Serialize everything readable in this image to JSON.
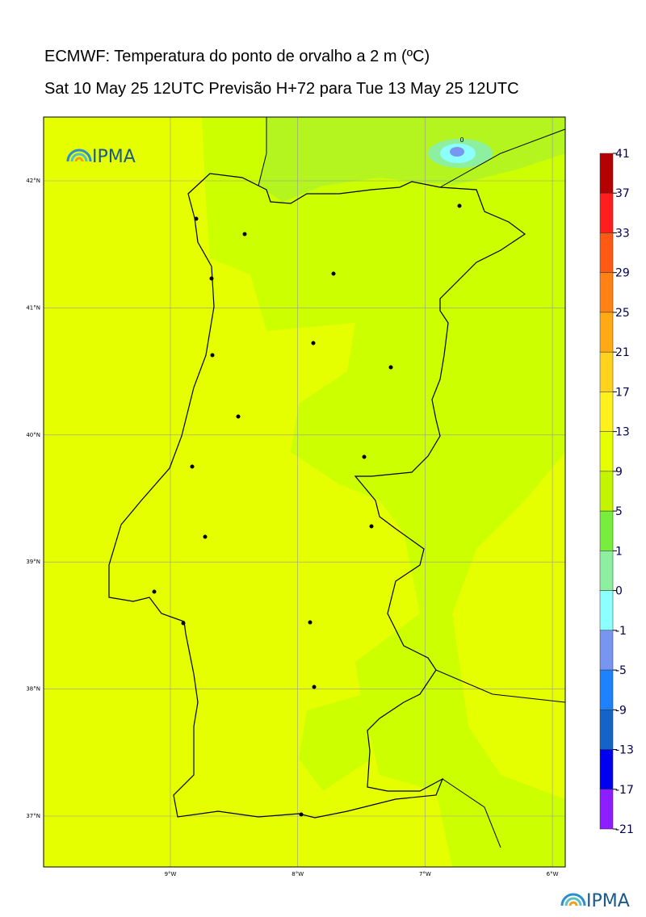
{
  "header": {
    "title": "ECMWF: Temperatura do ponto de orvalho a 2 m (ºC)",
    "subtitle": "Sat 10 May 25 12UTC Previsão H+72 para Tue 13 May 25 12UTC"
  },
  "map": {
    "lat_ticks": [
      {
        "value": 42,
        "label": "42°N"
      },
      {
        "value": 41,
        "label": "41°N"
      },
      {
        "value": 40,
        "label": "40°N"
      },
      {
        "value": 39,
        "label": "39°N"
      },
      {
        "value": 38,
        "label": "38°N"
      },
      {
        "value": 37,
        "label": "37°N"
      }
    ],
    "lon_ticks": [
      {
        "value": -9,
        "label": "9°W"
      },
      {
        "value": -8,
        "label": "8°W"
      },
      {
        "value": -7,
        "label": "7°W"
      },
      {
        "value": -6,
        "label": "6°W"
      }
    ],
    "contour_label": "0"
  },
  "colorbar": {
    "levels": [
      41,
      37,
      33,
      29,
      25,
      21,
      17,
      13,
      9,
      5,
      1,
      0,
      -1,
      -5,
      -9,
      -13,
      -17,
      -21
    ],
    "colors": [
      "#b40000",
      "#ff1e1e",
      "#ff5a14",
      "#ff8214",
      "#ffaa14",
      "#ffd21e",
      "#fff01e",
      "#e6ff00",
      "#c3f500",
      "#78ee3c",
      "#8cf0a0",
      "#8cffff",
      "#7896f0",
      "#1e82ff",
      "#1464c8",
      "#0000f0",
      "#8c1eff"
    ]
  },
  "logos": {
    "map_logo": "IPMA",
    "footer_logo": "IPMA"
  }
}
